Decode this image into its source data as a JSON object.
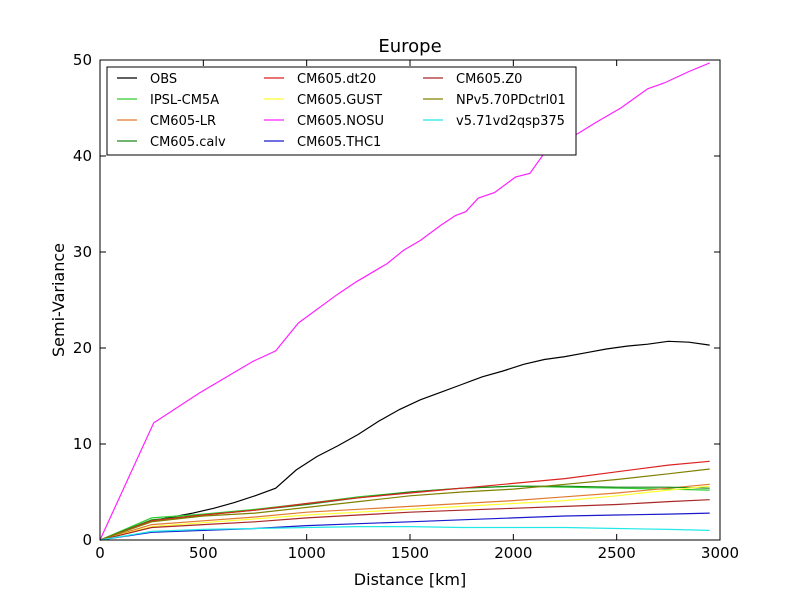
{
  "chart_data": {
    "type": "line",
    "title": "Europe",
    "xlabel": "Distance [km]",
    "ylabel": "Semi-Variance",
    "xlim": [
      0,
      3000
    ],
    "ylim": [
      0,
      50
    ],
    "xticks": [
      0,
      500,
      1000,
      1500,
      2000,
      2500,
      3000
    ],
    "yticks": [
      0,
      10,
      20,
      30,
      40,
      50
    ],
    "grid": false,
    "legend_position": "top-left",
    "legend_columns": 3,
    "series": [
      {
        "name": "OBS",
        "color": "#000000",
        "x": [
          0,
          250,
          350,
          450,
          550,
          650,
          750,
          850,
          950,
          1050,
          1150,
          1250,
          1350,
          1450,
          1550,
          1650,
          1750,
          1850,
          1950,
          2050,
          2150,
          2250,
          2350,
          2450,
          2550,
          2650,
          2750,
          2850,
          2950
        ],
        "y": [
          0,
          2.0,
          2.4,
          2.8,
          3.3,
          3.9,
          4.6,
          5.4,
          7.3,
          8.7,
          9.8,
          11.0,
          12.4,
          13.6,
          14.6,
          15.4,
          16.2,
          17.0,
          17.6,
          18.3,
          18.8,
          19.1,
          19.5,
          19.9,
          20.2,
          20.4,
          20.7,
          20.6,
          20.3
        ]
      },
      {
        "name": "IPSL-CM5A",
        "color": "#33cc33",
        "x": [
          0,
          250,
          500,
          750,
          1000,
          1250,
          1500,
          1750,
          2000,
          2250,
          2500,
          2750,
          2950
        ],
        "y": [
          0,
          2.3,
          2.7,
          3.2,
          3.8,
          4.5,
          5.0,
          5.4,
          5.6,
          5.5,
          5.4,
          5.3,
          5.2
        ]
      },
      {
        "name": "CM605-LR",
        "color": "#e07a30",
        "x": [
          0,
          250,
          500,
          750,
          1000,
          1250,
          1500,
          1750,
          2000,
          2250,
          2500,
          2750,
          2950
        ],
        "y": [
          0,
          1.6,
          2.0,
          2.4,
          2.9,
          3.2,
          3.5,
          3.8,
          4.1,
          4.5,
          4.9,
          5.4,
          5.8
        ]
      },
      {
        "name": "CM605.calv",
        "color": "#1a8a1a",
        "x": [
          0,
          250,
          500,
          750,
          1000,
          1250,
          1500,
          1750,
          2000,
          2250,
          2500,
          2750,
          2950
        ],
        "y": [
          0,
          2.1,
          2.6,
          3.1,
          3.7,
          4.4,
          5.0,
          5.4,
          5.6,
          5.6,
          5.5,
          5.5,
          5.4
        ]
      },
      {
        "name": "CM605.dt20",
        "color": "#dd2222",
        "x": [
          0,
          250,
          500,
          750,
          1000,
          1250,
          1500,
          1750,
          2000,
          2250,
          2500,
          2750,
          2950
        ],
        "y": [
          0,
          2.0,
          2.6,
          3.1,
          3.8,
          4.4,
          4.9,
          5.4,
          5.9,
          6.4,
          7.1,
          7.8,
          8.2
        ]
      },
      {
        "name": "CM605.GUST",
        "color": "#ffff33",
        "x": [
          0,
          250,
          500,
          750,
          1000,
          1250,
          1500,
          1750,
          2000,
          2250,
          2500,
          2750,
          2950
        ],
        "y": [
          0,
          1.4,
          1.8,
          2.2,
          2.6,
          2.9,
          3.2,
          3.5,
          3.8,
          4.1,
          4.6,
          5.2,
          5.6
        ]
      },
      {
        "name": "CM605.NOSU",
        "color": "#ff22ff",
        "x": [
          0,
          260,
          480,
          740,
          850,
          960,
          1150,
          1240,
          1390,
          1470,
          1550,
          1650,
          1720,
          1770,
          1830,
          1910,
          2010,
          2080,
          2150,
          2200,
          2260,
          2310,
          2400,
          2520,
          2650,
          2730,
          2850,
          2950
        ],
        "y": [
          0,
          12.2,
          15.3,
          18.6,
          19.7,
          22.6,
          25.6,
          26.9,
          28.8,
          30.2,
          31.2,
          32.8,
          33.8,
          34.2,
          35.6,
          36.2,
          37.8,
          38.2,
          40.3,
          41.0,
          41.8,
          42.3,
          43.5,
          45.0,
          47.0,
          47.6,
          48.8,
          49.7
        ]
      },
      {
        "name": "CM605.THC1",
        "color": "#1a1acc",
        "x": [
          0,
          250,
          500,
          750,
          1000,
          1250,
          1500,
          1750,
          2000,
          2250,
          2500,
          2750,
          2950
        ],
        "y": [
          0,
          0.8,
          1.0,
          1.2,
          1.5,
          1.7,
          1.9,
          2.1,
          2.3,
          2.5,
          2.6,
          2.7,
          2.8
        ]
      },
      {
        "name": "CM605.Z0",
        "color": "#aa2828",
        "x": [
          0,
          250,
          500,
          750,
          1000,
          1250,
          1500,
          1750,
          2000,
          2250,
          2500,
          2750,
          2950
        ],
        "y": [
          0,
          1.3,
          1.6,
          1.9,
          2.3,
          2.6,
          2.9,
          3.1,
          3.3,
          3.5,
          3.7,
          4.0,
          4.2
        ]
      },
      {
        "name": "NPv5.70PDctrl01",
        "color": "#808000",
        "x": [
          0,
          250,
          500,
          750,
          1000,
          1250,
          1500,
          1750,
          2000,
          2250,
          2500,
          2750,
          2950
        ],
        "y": [
          0,
          1.9,
          2.5,
          2.8,
          3.4,
          4.0,
          4.6,
          5.0,
          5.3,
          5.8,
          6.3,
          6.9,
          7.4
        ]
      },
      {
        "name": "v5.71vd2qsp375",
        "color": "#22e8e8",
        "x": [
          0,
          250,
          500,
          750,
          1000,
          1250,
          1500,
          1750,
          2000,
          2250,
          2500,
          2750,
          2950
        ],
        "y": [
          0,
          0.9,
          1.1,
          1.2,
          1.3,
          1.4,
          1.4,
          1.3,
          1.3,
          1.3,
          1.2,
          1.1,
          1.0
        ]
      }
    ]
  }
}
